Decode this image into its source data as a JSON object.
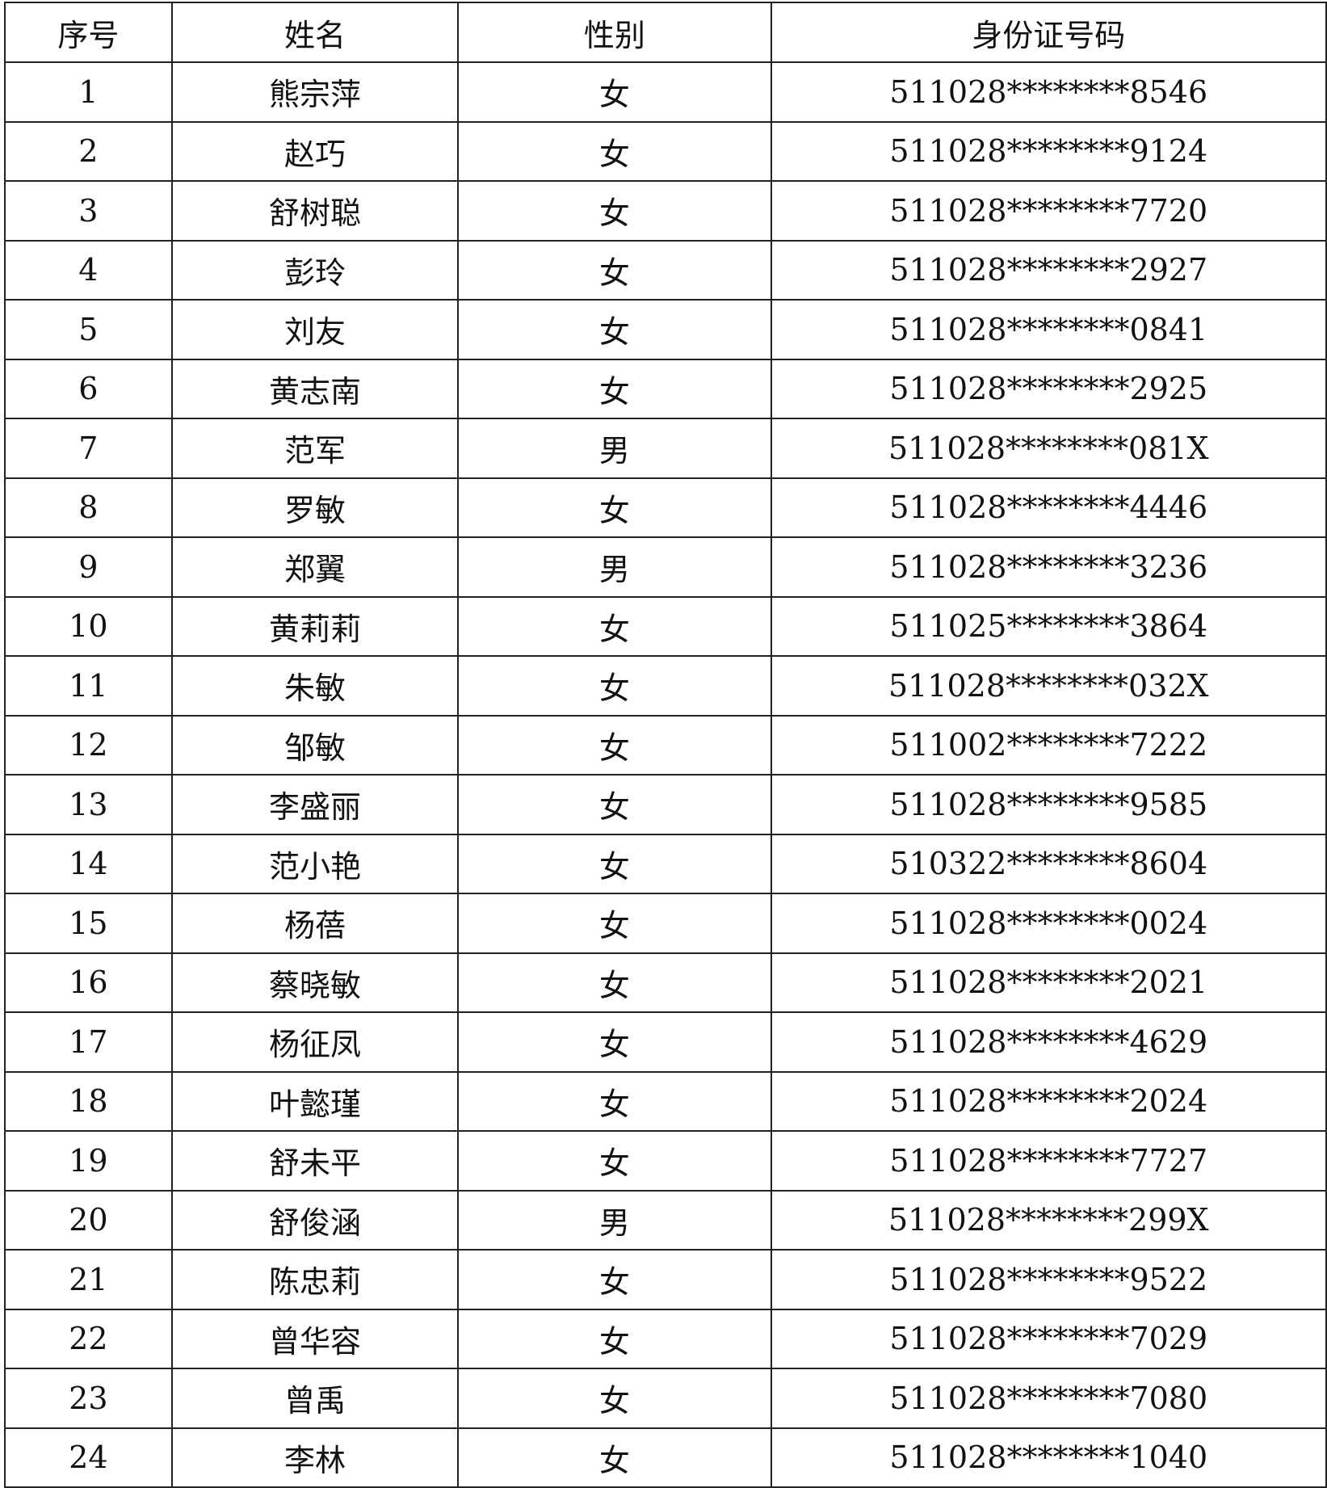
{
  "headers": [
    "序号",
    "姓名",
    "性别",
    "身份证号码"
  ],
  "rows": [
    [
      "1",
      "熊宗萍",
      "女",
      "511028********8546"
    ],
    [
      "2",
      "赵巧",
      "女",
      "511028********9124"
    ],
    [
      "3",
      "舒树聪",
      "女",
      "511028********7720"
    ],
    [
      "4",
      "彭玲",
      "女",
      "511028********2927"
    ],
    [
      "5",
      "刘友",
      "女",
      "511028********0841"
    ],
    [
      "6",
      "黄志南",
      "女",
      "511028********2925"
    ],
    [
      "7",
      "范军",
      "男",
      "511028********081X"
    ],
    [
      "8",
      "罗敏",
      "女",
      "511028********4446"
    ],
    [
      "9",
      "郑翼",
      "男",
      "511028********3236"
    ],
    [
      "10",
      "黄莉莉",
      "女",
      "511025********3864"
    ],
    [
      "11",
      "朱敏",
      "女",
      "511028********032X"
    ],
    [
      "12",
      "邹敏",
      "女",
      "511002********7222"
    ],
    [
      "13",
      "李盛丽",
      "女",
      "511028********9585"
    ],
    [
      "14",
      "范小艳",
      "女",
      "510322********8604"
    ],
    [
      "15",
      "杨蓓",
      "女",
      "511028********0024"
    ],
    [
      "16",
      "蔡晓敏",
      "女",
      "511028********2021"
    ],
    [
      "17",
      "杨征凤",
      "女",
      "511028********4629"
    ],
    [
      "18",
      "叶懿瑾",
      "女",
      "511028********2024"
    ],
    [
      "19",
      "舒未平",
      "女",
      "511028********7727"
    ],
    [
      "20",
      "舒俊涵",
      "男",
      "511028********299X"
    ],
    [
      "21",
      "陈忠莉",
      "女",
      "511028********9522"
    ],
    [
      "22",
      "曾华容",
      "女",
      "511028********7029"
    ],
    [
      "23",
      "曾禹",
      "女",
      "511028********7080"
    ],
    [
      "24",
      "李林",
      "女",
      "511028********1040"
    ]
  ]
}
